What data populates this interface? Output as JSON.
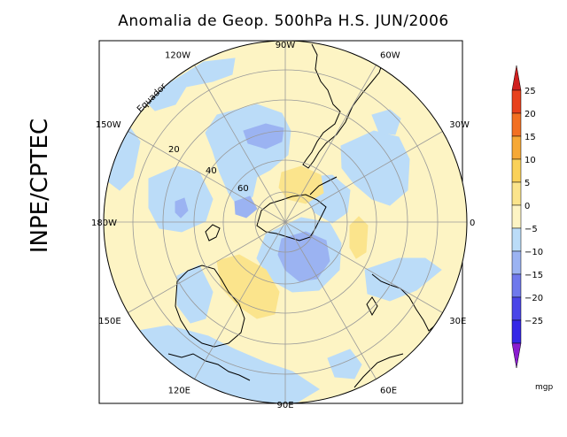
{
  "title": "Anomalia de Geop. 500hPa H.S. JUN/2006",
  "side_label": "INPE/CPTEC",
  "map": {
    "equator_label": "Equador",
    "longitude_labels": [
      {
        "text": "0",
        "lon": 0
      },
      {
        "text": "30E",
        "lon": 30
      },
      {
        "text": "60E",
        "lon": 60
      },
      {
        "text": "90E",
        "lon": 90
      },
      {
        "text": "120E",
        "lon": 120
      },
      {
        "text": "150E",
        "lon": 150
      },
      {
        "text": "180W",
        "lon": 180
      },
      {
        "text": "150W",
        "lon": -150
      },
      {
        "text": "120W",
        "lon": -120
      },
      {
        "text": "90W",
        "lon": -90
      },
      {
        "text": "60W",
        "lon": -60
      },
      {
        "text": "30W",
        "lon": -30
      }
    ],
    "latitude_labels": [
      "20",
      "40",
      "60"
    ],
    "anomaly_colors": {
      "positive_light": "#fdf4c4",
      "positive": "#fbe48c",
      "negative_light": "#bbdcf8",
      "negative": "#9bb3f2"
    }
  },
  "colorbar": {
    "ticks": [
      "25",
      "20",
      "15",
      "10",
      "5",
      "0",
      "−5",
      "−10",
      "−15",
      "−20",
      "−25"
    ],
    "colors": [
      "#e8411c",
      "#f27022",
      "#f6a835",
      "#fad159",
      "#fbe48c",
      "#fdf4c4",
      "#bbdcf8",
      "#9bb3f2",
      "#6f79ec",
      "#4a45e8",
      "#3426e6"
    ],
    "top_cap_color": "#cf1f1f",
    "bottom_cap_color": "#8a1ccf",
    "unit": "mgp"
  }
}
